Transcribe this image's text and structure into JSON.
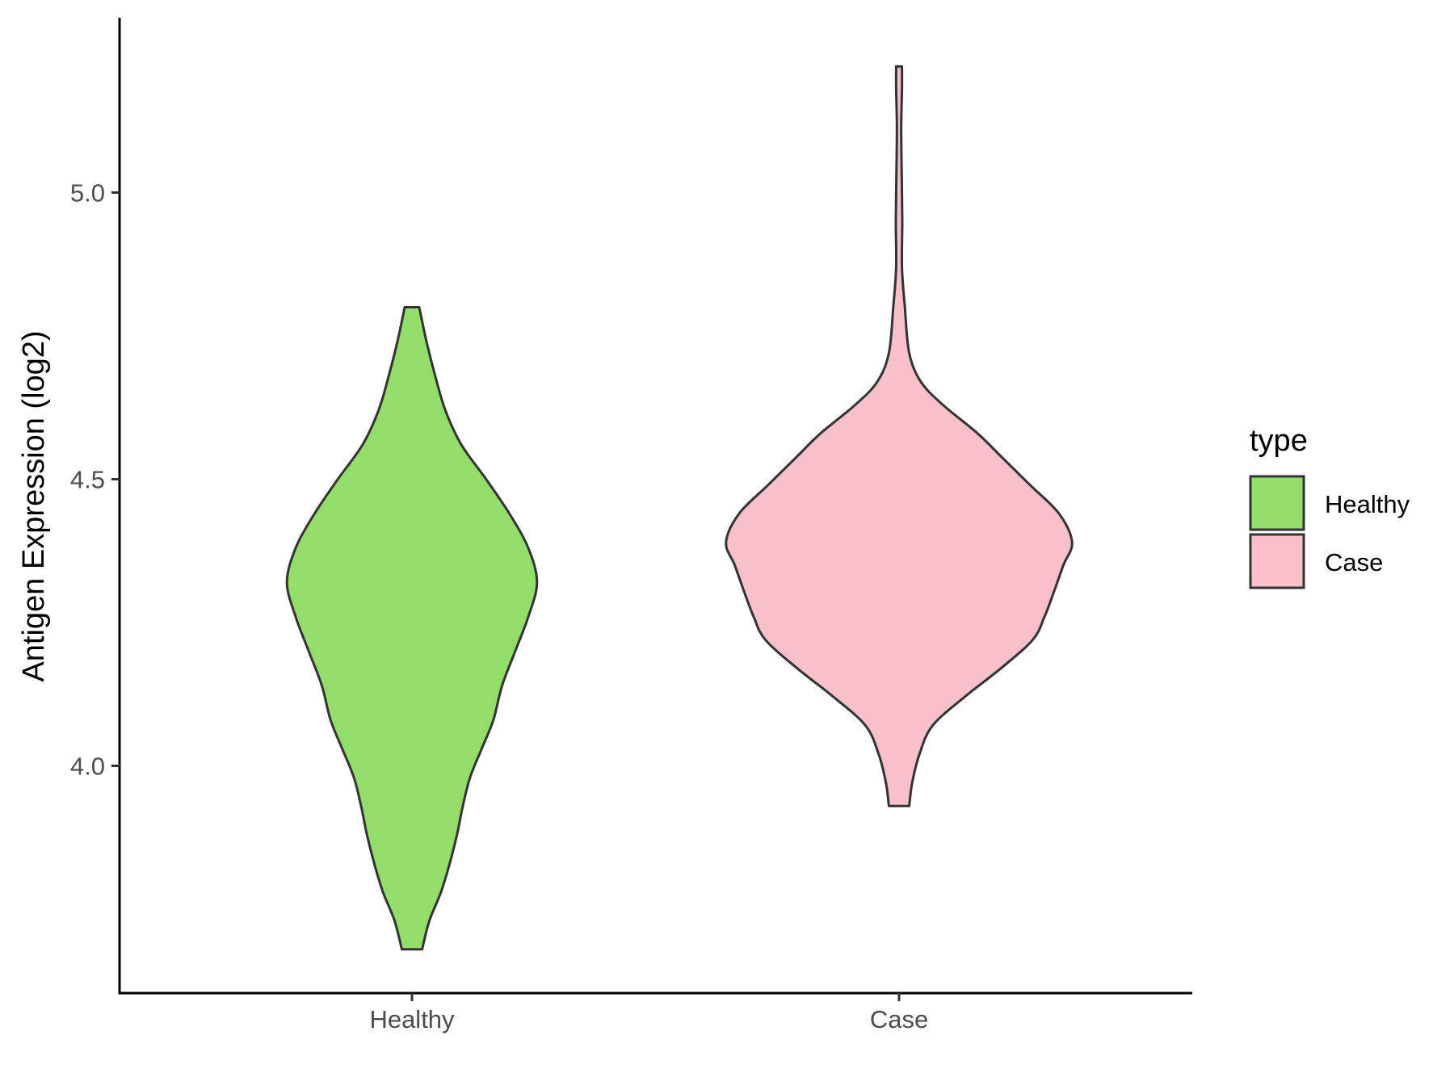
{
  "chart_data": {
    "type": "violin",
    "title": "",
    "xlabel": "",
    "ylabel": "Antigen Expression (log2)",
    "categories": [
      "Healthy",
      "Case"
    ],
    "y_ticks": [
      "4.0",
      "4.5",
      "5.0"
    ],
    "ylim": [
      3.66,
      5.3
    ],
    "grid": false,
    "legend": {
      "title": "type",
      "position": "right",
      "entries": [
        "Healthy",
        "Case"
      ]
    },
    "series": [
      {
        "name": "Healthy",
        "color": "#93dd6a",
        "profile": [
          {
            "y": 3.68,
            "w": 0.07
          },
          {
            "y": 3.73,
            "w": 0.12
          },
          {
            "y": 3.78,
            "w": 0.2
          },
          {
            "y": 3.83,
            "w": 0.26
          },
          {
            "y": 3.88,
            "w": 0.31
          },
          {
            "y": 3.93,
            "w": 0.35
          },
          {
            "y": 3.98,
            "w": 0.4
          },
          {
            "y": 4.03,
            "w": 0.48
          },
          {
            "y": 4.08,
            "w": 0.56
          },
          {
            "y": 4.14,
            "w": 0.62
          },
          {
            "y": 4.2,
            "w": 0.71
          },
          {
            "y": 4.26,
            "w": 0.8
          },
          {
            "y": 4.32,
            "w": 0.86
          },
          {
            "y": 4.38,
            "w": 0.8
          },
          {
            "y": 4.44,
            "w": 0.67
          },
          {
            "y": 4.5,
            "w": 0.51
          },
          {
            "y": 4.56,
            "w": 0.34
          },
          {
            "y": 4.62,
            "w": 0.23
          },
          {
            "y": 4.68,
            "w": 0.16
          },
          {
            "y": 4.74,
            "w": 0.1
          },
          {
            "y": 4.8,
            "w": 0.05
          }
        ]
      },
      {
        "name": "Case",
        "color": "#f7c0cb",
        "profile": [
          {
            "y": 3.93,
            "w": 0.07
          },
          {
            "y": 3.97,
            "w": 0.09
          },
          {
            "y": 4.02,
            "w": 0.14
          },
          {
            "y": 4.07,
            "w": 0.23
          },
          {
            "y": 4.12,
            "w": 0.45
          },
          {
            "y": 4.17,
            "w": 0.7
          },
          {
            "y": 4.22,
            "w": 0.92
          },
          {
            "y": 4.26,
            "w": 1.0
          },
          {
            "y": 4.3,
            "w": 1.06
          },
          {
            "y": 4.35,
            "w": 1.13
          },
          {
            "y": 4.39,
            "w": 1.19
          },
          {
            "y": 4.44,
            "w": 1.1
          },
          {
            "y": 4.49,
            "w": 0.9
          },
          {
            "y": 4.54,
            "w": 0.7
          },
          {
            "y": 4.58,
            "w": 0.54
          },
          {
            "y": 4.63,
            "w": 0.3
          },
          {
            "y": 4.67,
            "w": 0.15
          },
          {
            "y": 4.72,
            "w": 0.07
          },
          {
            "y": 4.8,
            "w": 0.04
          },
          {
            "y": 4.87,
            "w": 0.02
          },
          {
            "y": 4.95,
            "w": 0.022
          },
          {
            "y": 5.05,
            "w": 0.017
          },
          {
            "y": 5.12,
            "w": 0.015
          },
          {
            "y": 5.18,
            "w": 0.02
          },
          {
            "y": 5.22,
            "w": 0.02
          }
        ]
      }
    ]
  }
}
